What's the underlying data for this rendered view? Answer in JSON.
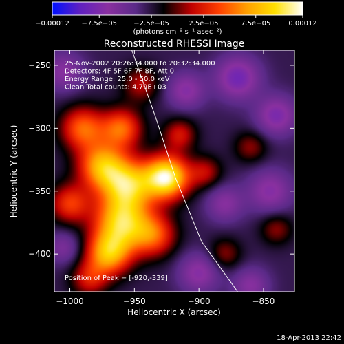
{
  "chart_data": {
    "type": "heatmap",
    "title": "Reconstructed RHESSI Image",
    "xlabel": "Heliocentric X (arcsec)",
    "ylabel": "Heliocentric Y (arcsec)",
    "xlim": [
      -1012,
      -826
    ],
    "ylim": [
      -430,
      -238
    ],
    "x_ticks": [
      -1000,
      -950,
      -900,
      -850
    ],
    "y_ticks": [
      -250,
      -300,
      -350,
      -400
    ],
    "x_tick_labels": [
      "−1000",
      "−950",
      "−900",
      "−850"
    ],
    "y_tick_labels": [
      "−250",
      "−300",
      "−350",
      "−400"
    ],
    "annotations": [
      "25-Nov-2002 20:26:34.000 to 20:32:34.000",
      "Detectors: 4F 5F 6F 7F 8F, Att 0",
      "Energy Range: 25.0 - 50.0 keV",
      "Clean    Total counts: 4.79E+03"
    ],
    "peak_label": "Position of Peak = [-920,-339]",
    "peak_position": [
      -920,
      -339
    ],
    "limb_curve": [
      [
        -952,
        -238
      ],
      [
        -934,
        -290
      ],
      [
        -918,
        -340
      ],
      [
        -898,
        -390
      ],
      [
        -870,
        -430
      ]
    ],
    "colorbar": {
      "range": [
        -0.00012,
        0.00012
      ],
      "tick_values": [
        -0.00012,
        -7.5e-05,
        -2.5e-05,
        2.5e-05,
        7.5e-05,
        0.00012
      ],
      "tick_labels": [
        "−0.00012",
        "−7.5e−05",
        "−2.5e−05",
        "2.5e−05",
        "7.5e−05",
        "0.00012"
      ],
      "unit_label": "(photons cm⁻² s⁻¹ asec⁻²)",
      "colors": [
        "#0010ff",
        "#6020c0",
        "#8a30a0",
        "#5a2a88",
        "#000000",
        "#c00000",
        "#ff4000",
        "#ffa000",
        "#ffe000",
        "#ffffff"
      ]
    },
    "intensity_blobs": [
      {
        "x": -925,
        "y": -339,
        "amp": 1.0,
        "s": 12
      },
      {
        "x": -955,
        "y": -345,
        "amp": 0.75,
        "s": 14
      },
      {
        "x": -975,
        "y": -330,
        "amp": 0.7,
        "s": 13
      },
      {
        "x": -960,
        "y": -375,
        "amp": 0.8,
        "s": 15
      },
      {
        "x": -970,
        "y": -400,
        "amp": 0.7,
        "s": 12
      },
      {
        "x": -990,
        "y": -300,
        "amp": 0.55,
        "s": 12
      },
      {
        "x": -960,
        "y": -300,
        "amp": 0.55,
        "s": 11
      },
      {
        "x": -935,
        "y": -385,
        "amp": 0.5,
        "s": 12
      },
      {
        "x": -1000,
        "y": -360,
        "amp": 0.45,
        "s": 11
      },
      {
        "x": -915,
        "y": -305,
        "amp": 0.35,
        "s": 9
      },
      {
        "x": -895,
        "y": -335,
        "amp": 0.3,
        "s": 9
      },
      {
        "x": -945,
        "y": -265,
        "amp": 0.3,
        "s": 10
      },
      {
        "x": -860,
        "y": -315,
        "amp": 0.25,
        "s": 9
      },
      {
        "x": -840,
        "y": -380,
        "amp": 0.25,
        "s": 9
      },
      {
        "x": -880,
        "y": -400,
        "amp": 0.25,
        "s": 9
      },
      {
        "x": -985,
        "y": -420,
        "amp": 0.35,
        "s": 10
      },
      {
        "x": -870,
        "y": -260,
        "amp": -0.45,
        "s": 12
      },
      {
        "x": -840,
        "y": -290,
        "amp": -0.4,
        "s": 11
      },
      {
        "x": -910,
        "y": -270,
        "amp": -0.35,
        "s": 10
      },
      {
        "x": -845,
        "y": -350,
        "amp": -0.35,
        "s": 12
      },
      {
        "x": -880,
        "y": -360,
        "amp": -0.3,
        "s": 10
      },
      {
        "x": -900,
        "y": -415,
        "amp": -0.35,
        "s": 11
      },
      {
        "x": -1005,
        "y": -255,
        "amp": -0.3,
        "s": 11
      },
      {
        "x": -860,
        "y": -425,
        "amp": -0.3,
        "s": 10
      },
      {
        "x": -1005,
        "y": -395,
        "amp": -0.25,
        "s": 9
      }
    ]
  },
  "footer": {
    "timestamp": "18-Apr-2013 22:42"
  }
}
